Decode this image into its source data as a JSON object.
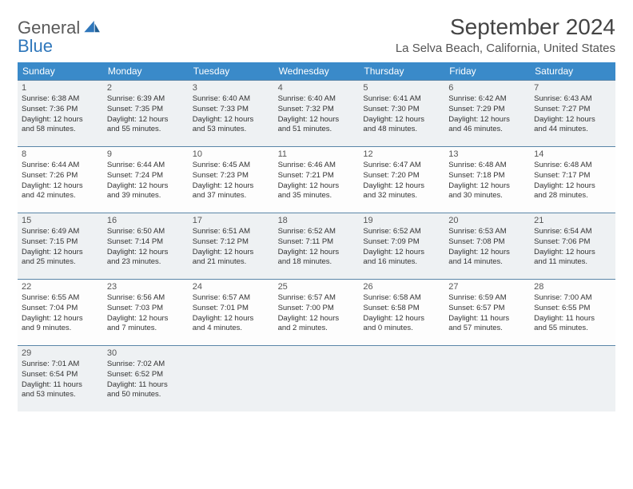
{
  "logo": {
    "word1": "General",
    "word2": "Blue"
  },
  "header": {
    "month_title": "September 2024",
    "location": "La Selva Beach, California, United States"
  },
  "dayNames": [
    "Sunday",
    "Monday",
    "Tuesday",
    "Wednesday",
    "Thursday",
    "Friday",
    "Saturday"
  ],
  "colors": {
    "header_bg": "#3a8ac9",
    "header_text": "#ffffff",
    "row_border": "#5a86a8",
    "shade_bg": "#eef1f3"
  },
  "weeks": [
    {
      "shaded": true,
      "days": [
        {
          "num": "1",
          "sr": "6:38 AM",
          "ss": "7:36 PM",
          "dl_hours": "12",
          "dl_mins": "58"
        },
        {
          "num": "2",
          "sr": "6:39 AM",
          "ss": "7:35 PM",
          "dl_hours": "12",
          "dl_mins": "55"
        },
        {
          "num": "3",
          "sr": "6:40 AM",
          "ss": "7:33 PM",
          "dl_hours": "12",
          "dl_mins": "53"
        },
        {
          "num": "4",
          "sr": "6:40 AM",
          "ss": "7:32 PM",
          "dl_hours": "12",
          "dl_mins": "51"
        },
        {
          "num": "5",
          "sr": "6:41 AM",
          "ss": "7:30 PM",
          "dl_hours": "12",
          "dl_mins": "48"
        },
        {
          "num": "6",
          "sr": "6:42 AM",
          "ss": "7:29 PM",
          "dl_hours": "12",
          "dl_mins": "46"
        },
        {
          "num": "7",
          "sr": "6:43 AM",
          "ss": "7:27 PM",
          "dl_hours": "12",
          "dl_mins": "44"
        }
      ]
    },
    {
      "shaded": false,
      "days": [
        {
          "num": "8",
          "sr": "6:44 AM",
          "ss": "7:26 PM",
          "dl_hours": "12",
          "dl_mins": "42"
        },
        {
          "num": "9",
          "sr": "6:44 AM",
          "ss": "7:24 PM",
          "dl_hours": "12",
          "dl_mins": "39"
        },
        {
          "num": "10",
          "sr": "6:45 AM",
          "ss": "7:23 PM",
          "dl_hours": "12",
          "dl_mins": "37"
        },
        {
          "num": "11",
          "sr": "6:46 AM",
          "ss": "7:21 PM",
          "dl_hours": "12",
          "dl_mins": "35"
        },
        {
          "num": "12",
          "sr": "6:47 AM",
          "ss": "7:20 PM",
          "dl_hours": "12",
          "dl_mins": "32"
        },
        {
          "num": "13",
          "sr": "6:48 AM",
          "ss": "7:18 PM",
          "dl_hours": "12",
          "dl_mins": "30"
        },
        {
          "num": "14",
          "sr": "6:48 AM",
          "ss": "7:17 PM",
          "dl_hours": "12",
          "dl_mins": "28"
        }
      ]
    },
    {
      "shaded": true,
      "days": [
        {
          "num": "15",
          "sr": "6:49 AM",
          "ss": "7:15 PM",
          "dl_hours": "12",
          "dl_mins": "25"
        },
        {
          "num": "16",
          "sr": "6:50 AM",
          "ss": "7:14 PM",
          "dl_hours": "12",
          "dl_mins": "23"
        },
        {
          "num": "17",
          "sr": "6:51 AM",
          "ss": "7:12 PM",
          "dl_hours": "12",
          "dl_mins": "21"
        },
        {
          "num": "18",
          "sr": "6:52 AM",
          "ss": "7:11 PM",
          "dl_hours": "12",
          "dl_mins": "18"
        },
        {
          "num": "19",
          "sr": "6:52 AM",
          "ss": "7:09 PM",
          "dl_hours": "12",
          "dl_mins": "16"
        },
        {
          "num": "20",
          "sr": "6:53 AM",
          "ss": "7:08 PM",
          "dl_hours": "12",
          "dl_mins": "14"
        },
        {
          "num": "21",
          "sr": "6:54 AM",
          "ss": "7:06 PM",
          "dl_hours": "12",
          "dl_mins": "11"
        }
      ]
    },
    {
      "shaded": false,
      "days": [
        {
          "num": "22",
          "sr": "6:55 AM",
          "ss": "7:04 PM",
          "dl_hours": "12",
          "dl_mins": "9"
        },
        {
          "num": "23",
          "sr": "6:56 AM",
          "ss": "7:03 PM",
          "dl_hours": "12",
          "dl_mins": "7"
        },
        {
          "num": "24",
          "sr": "6:57 AM",
          "ss": "7:01 PM",
          "dl_hours": "12",
          "dl_mins": "4"
        },
        {
          "num": "25",
          "sr": "6:57 AM",
          "ss": "7:00 PM",
          "dl_hours": "12",
          "dl_mins": "2"
        },
        {
          "num": "26",
          "sr": "6:58 AM",
          "ss": "6:58 PM",
          "dl_hours": "12",
          "dl_mins": "0"
        },
        {
          "num": "27",
          "sr": "6:59 AM",
          "ss": "6:57 PM",
          "dl_hours": "11",
          "dl_mins": "57"
        },
        {
          "num": "28",
          "sr": "7:00 AM",
          "ss": "6:55 PM",
          "dl_hours": "11",
          "dl_mins": "55"
        }
      ]
    },
    {
      "shaded": true,
      "days": [
        {
          "num": "29",
          "sr": "7:01 AM",
          "ss": "6:54 PM",
          "dl_hours": "11",
          "dl_mins": "53"
        },
        {
          "num": "30",
          "sr": "7:02 AM",
          "ss": "6:52 PM",
          "dl_hours": "11",
          "dl_mins": "50"
        },
        {
          "num": "",
          "empty": true
        },
        {
          "num": "",
          "empty": true
        },
        {
          "num": "",
          "empty": true
        },
        {
          "num": "",
          "empty": true
        },
        {
          "num": "",
          "empty": true
        }
      ]
    }
  ],
  "labels": {
    "sunrise_prefix": "Sunrise: ",
    "sunset_prefix": "Sunset: ",
    "daylight_prefix": "Daylight: ",
    "hours_word": " hours",
    "and_word": "and ",
    "minutes_word": " minutes."
  }
}
